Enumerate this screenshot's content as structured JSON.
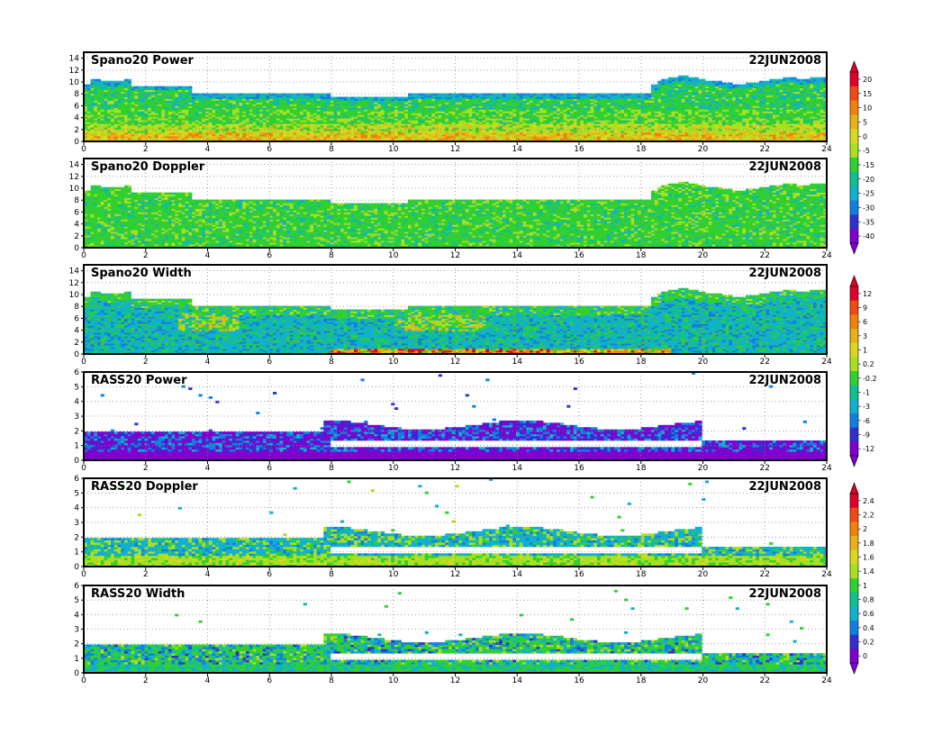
{
  "chart_data": [
    {
      "type": "heatmap",
      "title": "Spano20 Power",
      "date": "22JUN2008",
      "x_range": [
        0,
        24
      ],
      "x_ticks": [
        "0",
        "2",
        "4",
        "6",
        "8",
        "10",
        "12",
        "14",
        "16",
        "18",
        "20",
        "22",
        "24"
      ],
      "y_range": [
        0,
        15
      ],
      "y_ticks": [
        "0",
        "2",
        "4",
        "6",
        "8",
        "10",
        "12",
        "14"
      ],
      "grid": true,
      "colorbar": [
        "20",
        "15",
        "10",
        "5",
        "0",
        "-5",
        "-15",
        "-20",
        "-25",
        "-30",
        "-35",
        "-40"
      ],
      "colorbar_colors": [
        "#e0002a",
        "#f04a10",
        "#f08010",
        "#e8b018",
        "#d8d820",
        "#a8e020",
        "#30d030",
        "#10c090",
        "#10b0d0",
        "#1080e0",
        "#3030d0",
        "#8000d0"
      ]
    },
    {
      "type": "heatmap",
      "title": "Spano20 Doppler",
      "date": "22JUN2008",
      "x_range": [
        0,
        24
      ],
      "x_ticks": [
        "0",
        "2",
        "4",
        "6",
        "8",
        "10",
        "12",
        "14",
        "16",
        "18",
        "20",
        "22",
        "24"
      ],
      "y_range": [
        0,
        15
      ],
      "y_ticks": [
        "0",
        "2",
        "4",
        "6",
        "8",
        "10",
        "12",
        "14"
      ],
      "grid": true,
      "colorbar": [
        "20",
        "15",
        "10",
        "5",
        "0",
        "-5",
        "-15",
        "-20",
        "-25",
        "-30",
        "-35",
        "-40"
      ],
      "colorbar_colors": [
        "#e0002a",
        "#f04a10",
        "#f08010",
        "#e8b018",
        "#d8d820",
        "#a8e020",
        "#30d030",
        "#10c090",
        "#10b0d0",
        "#1080e0",
        "#3030d0",
        "#8000d0"
      ]
    },
    {
      "type": "heatmap",
      "title": "Spano20 Width",
      "date": "22JUN2008",
      "x_range": [
        0,
        24
      ],
      "x_ticks": [
        "0",
        "2",
        "4",
        "6",
        "8",
        "10",
        "12",
        "14",
        "16",
        "18",
        "20",
        "22",
        "24"
      ],
      "y_range": [
        0,
        15
      ],
      "y_ticks": [
        "0",
        "2",
        "4",
        "6",
        "8",
        "10",
        "12",
        "14"
      ],
      "grid": true,
      "colorbar": [
        "12",
        "9",
        "6",
        "3",
        "1",
        "0.2",
        "-0.2",
        "-1",
        "-3",
        "-6",
        "-9",
        "-12"
      ],
      "colorbar_colors": [
        "#e0002a",
        "#f04a10",
        "#f08010",
        "#e8b018",
        "#d8d820",
        "#a8e020",
        "#30d030",
        "#10c090",
        "#10b0d0",
        "#1080e0",
        "#3030d0",
        "#8000d0"
      ]
    },
    {
      "type": "heatmap",
      "title": "RASS20 Power",
      "date": "22JUN2008",
      "x_range": [
        0,
        24
      ],
      "x_ticks": [
        "0",
        "2",
        "4",
        "6",
        "8",
        "10",
        "12",
        "14",
        "16",
        "18",
        "20",
        "22",
        "24"
      ],
      "y_range": [
        0,
        6
      ],
      "y_ticks": [
        "0",
        "1",
        "2",
        "3",
        "4",
        "5",
        "6"
      ],
      "grid": true,
      "colorbar": [
        "12",
        "9",
        "6",
        "3",
        "1",
        "0.2",
        "-0.2",
        "-1",
        "-3",
        "-6",
        "-9",
        "-12"
      ],
      "colorbar_colors": [
        "#e0002a",
        "#f04a10",
        "#f08010",
        "#e8b018",
        "#d8d820",
        "#a8e020",
        "#30d030",
        "#10c090",
        "#10b0d0",
        "#1080e0",
        "#3030d0",
        "#8000d0"
      ]
    },
    {
      "type": "heatmap",
      "title": "RASS20 Doppler",
      "date": "22JUN2008",
      "x_range": [
        0,
        24
      ],
      "x_ticks": [
        "0",
        "2",
        "4",
        "6",
        "8",
        "10",
        "12",
        "14",
        "16",
        "18",
        "20",
        "22",
        "24"
      ],
      "y_range": [
        0,
        6
      ],
      "y_ticks": [
        "0",
        "1",
        "2",
        "3",
        "4",
        "5",
        "6"
      ],
      "grid": true,
      "colorbar": [
        "2.4",
        "2.2",
        "2",
        "1.8",
        "1.6",
        "1.4",
        "1",
        "0.8",
        "0.6",
        "0.4",
        "0.2",
        "0"
      ],
      "colorbar_colors": [
        "#e0002a",
        "#f04a10",
        "#f08010",
        "#e8b018",
        "#d8d820",
        "#a8e020",
        "#30d030",
        "#10c090",
        "#10b0d0",
        "#1080e0",
        "#3030d0",
        "#8000d0"
      ]
    },
    {
      "type": "heatmap",
      "title": "RASS20 Width",
      "date": "22JUN2008",
      "x_range": [
        0,
        24
      ],
      "x_ticks": [
        "0",
        "2",
        "4",
        "6",
        "8",
        "10",
        "12",
        "14",
        "16",
        "18",
        "20",
        "22",
        "24"
      ],
      "y_range": [
        0,
        6
      ],
      "y_ticks": [
        "0",
        "1",
        "2",
        "3",
        "4",
        "5",
        "6"
      ],
      "grid": true,
      "colorbar": [
        "2.4",
        "2.2",
        "2",
        "1.8",
        "1.6",
        "1.4",
        "1",
        "0.8",
        "0.6",
        "0.4",
        "0.2",
        "0"
      ],
      "colorbar_colors": [
        "#e0002a",
        "#f04a10",
        "#f08010",
        "#e8b018",
        "#d8d820",
        "#a8e020",
        "#30d030",
        "#10c090",
        "#10b0d0",
        "#1080e0",
        "#3030d0",
        "#8000d0"
      ]
    }
  ]
}
